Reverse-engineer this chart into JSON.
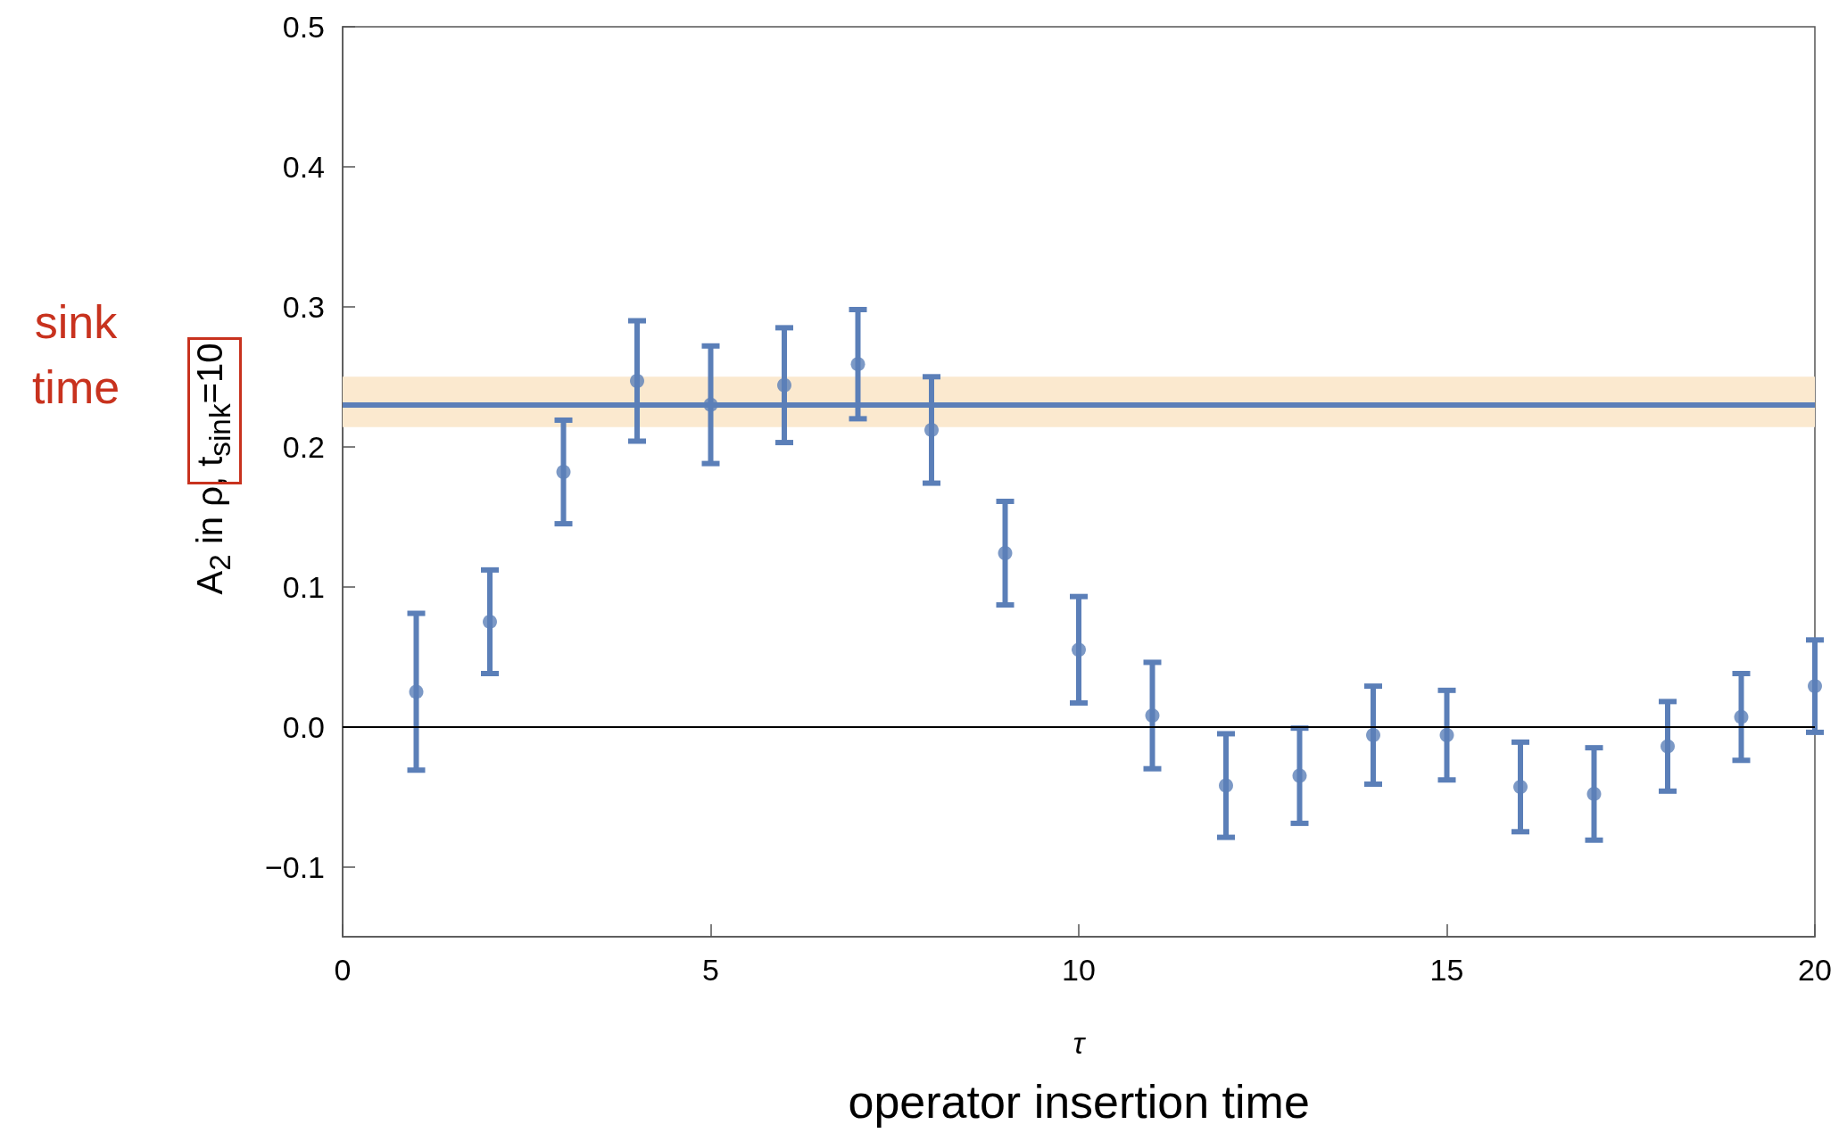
{
  "chart_data": {
    "type": "scatter",
    "xlabel": "τ",
    "ylabel": "A$_{2}$ in ρ, t$_{sink}$=10",
    "annotations": [
      "sink time",
      "operator insertion time"
    ],
    "x": [
      1,
      2,
      3,
      4,
      5,
      6,
      7,
      8,
      9,
      10,
      11,
      12,
      13,
      14,
      15,
      16,
      17,
      18,
      19,
      20
    ],
    "series": [
      {
        "color": "#5b7fb8",
        "values": [
          0.025,
          0.075,
          0.182,
          0.247,
          0.23,
          0.244,
          0.259,
          0.212,
          0.124,
          0.055,
          0.008,
          -0.042,
          -0.035,
          -0.006,
          -0.006,
          -0.043,
          -0.048,
          -0.014,
          0.007,
          0.029
        ],
        "errors": [
          0.056,
          0.037,
          0.037,
          0.043,
          0.042,
          0.041,
          0.039,
          0.038,
          0.037,
          0.038,
          0.038,
          0.037,
          0.034,
          0.035,
          0.032,
          0.032,
          0.033,
          0.032,
          0.031,
          0.033
        ]
      }
    ],
    "xlim": [
      0,
      20
    ],
    "xticks": [
      0,
      5,
      10,
      15,
      20
    ],
    "ylim": [
      -0.15,
      0.5
    ],
    "yticks": [
      {
        "value": -0.1,
        "label": "−0.1"
      },
      {
        "value": 0,
        "label": "0.0"
      },
      {
        "value": 0.1,
        "label": "0.1"
      },
      {
        "value": 0.2,
        "label": "0.2"
      },
      {
        "value": 0.3,
        "label": "0.3"
      },
      {
        "value": 0.4,
        "label": "0.4"
      },
      {
        "value": 0.5,
        "label": "0.5"
      }
    ],
    "ref_lines": [
      {
        "axis": "y",
        "value": 0,
        "color": "#000000"
      },
      {
        "axis": "y",
        "value": 0.232,
        "color": "#5b7fb8"
      }
    ],
    "bands": [
      {
        "axis": "y",
        "from": 0.214,
        "to": 0.25,
        "color": "#fbe9cf"
      }
    ],
    "marker": "circle",
    "grid": false
  }
}
